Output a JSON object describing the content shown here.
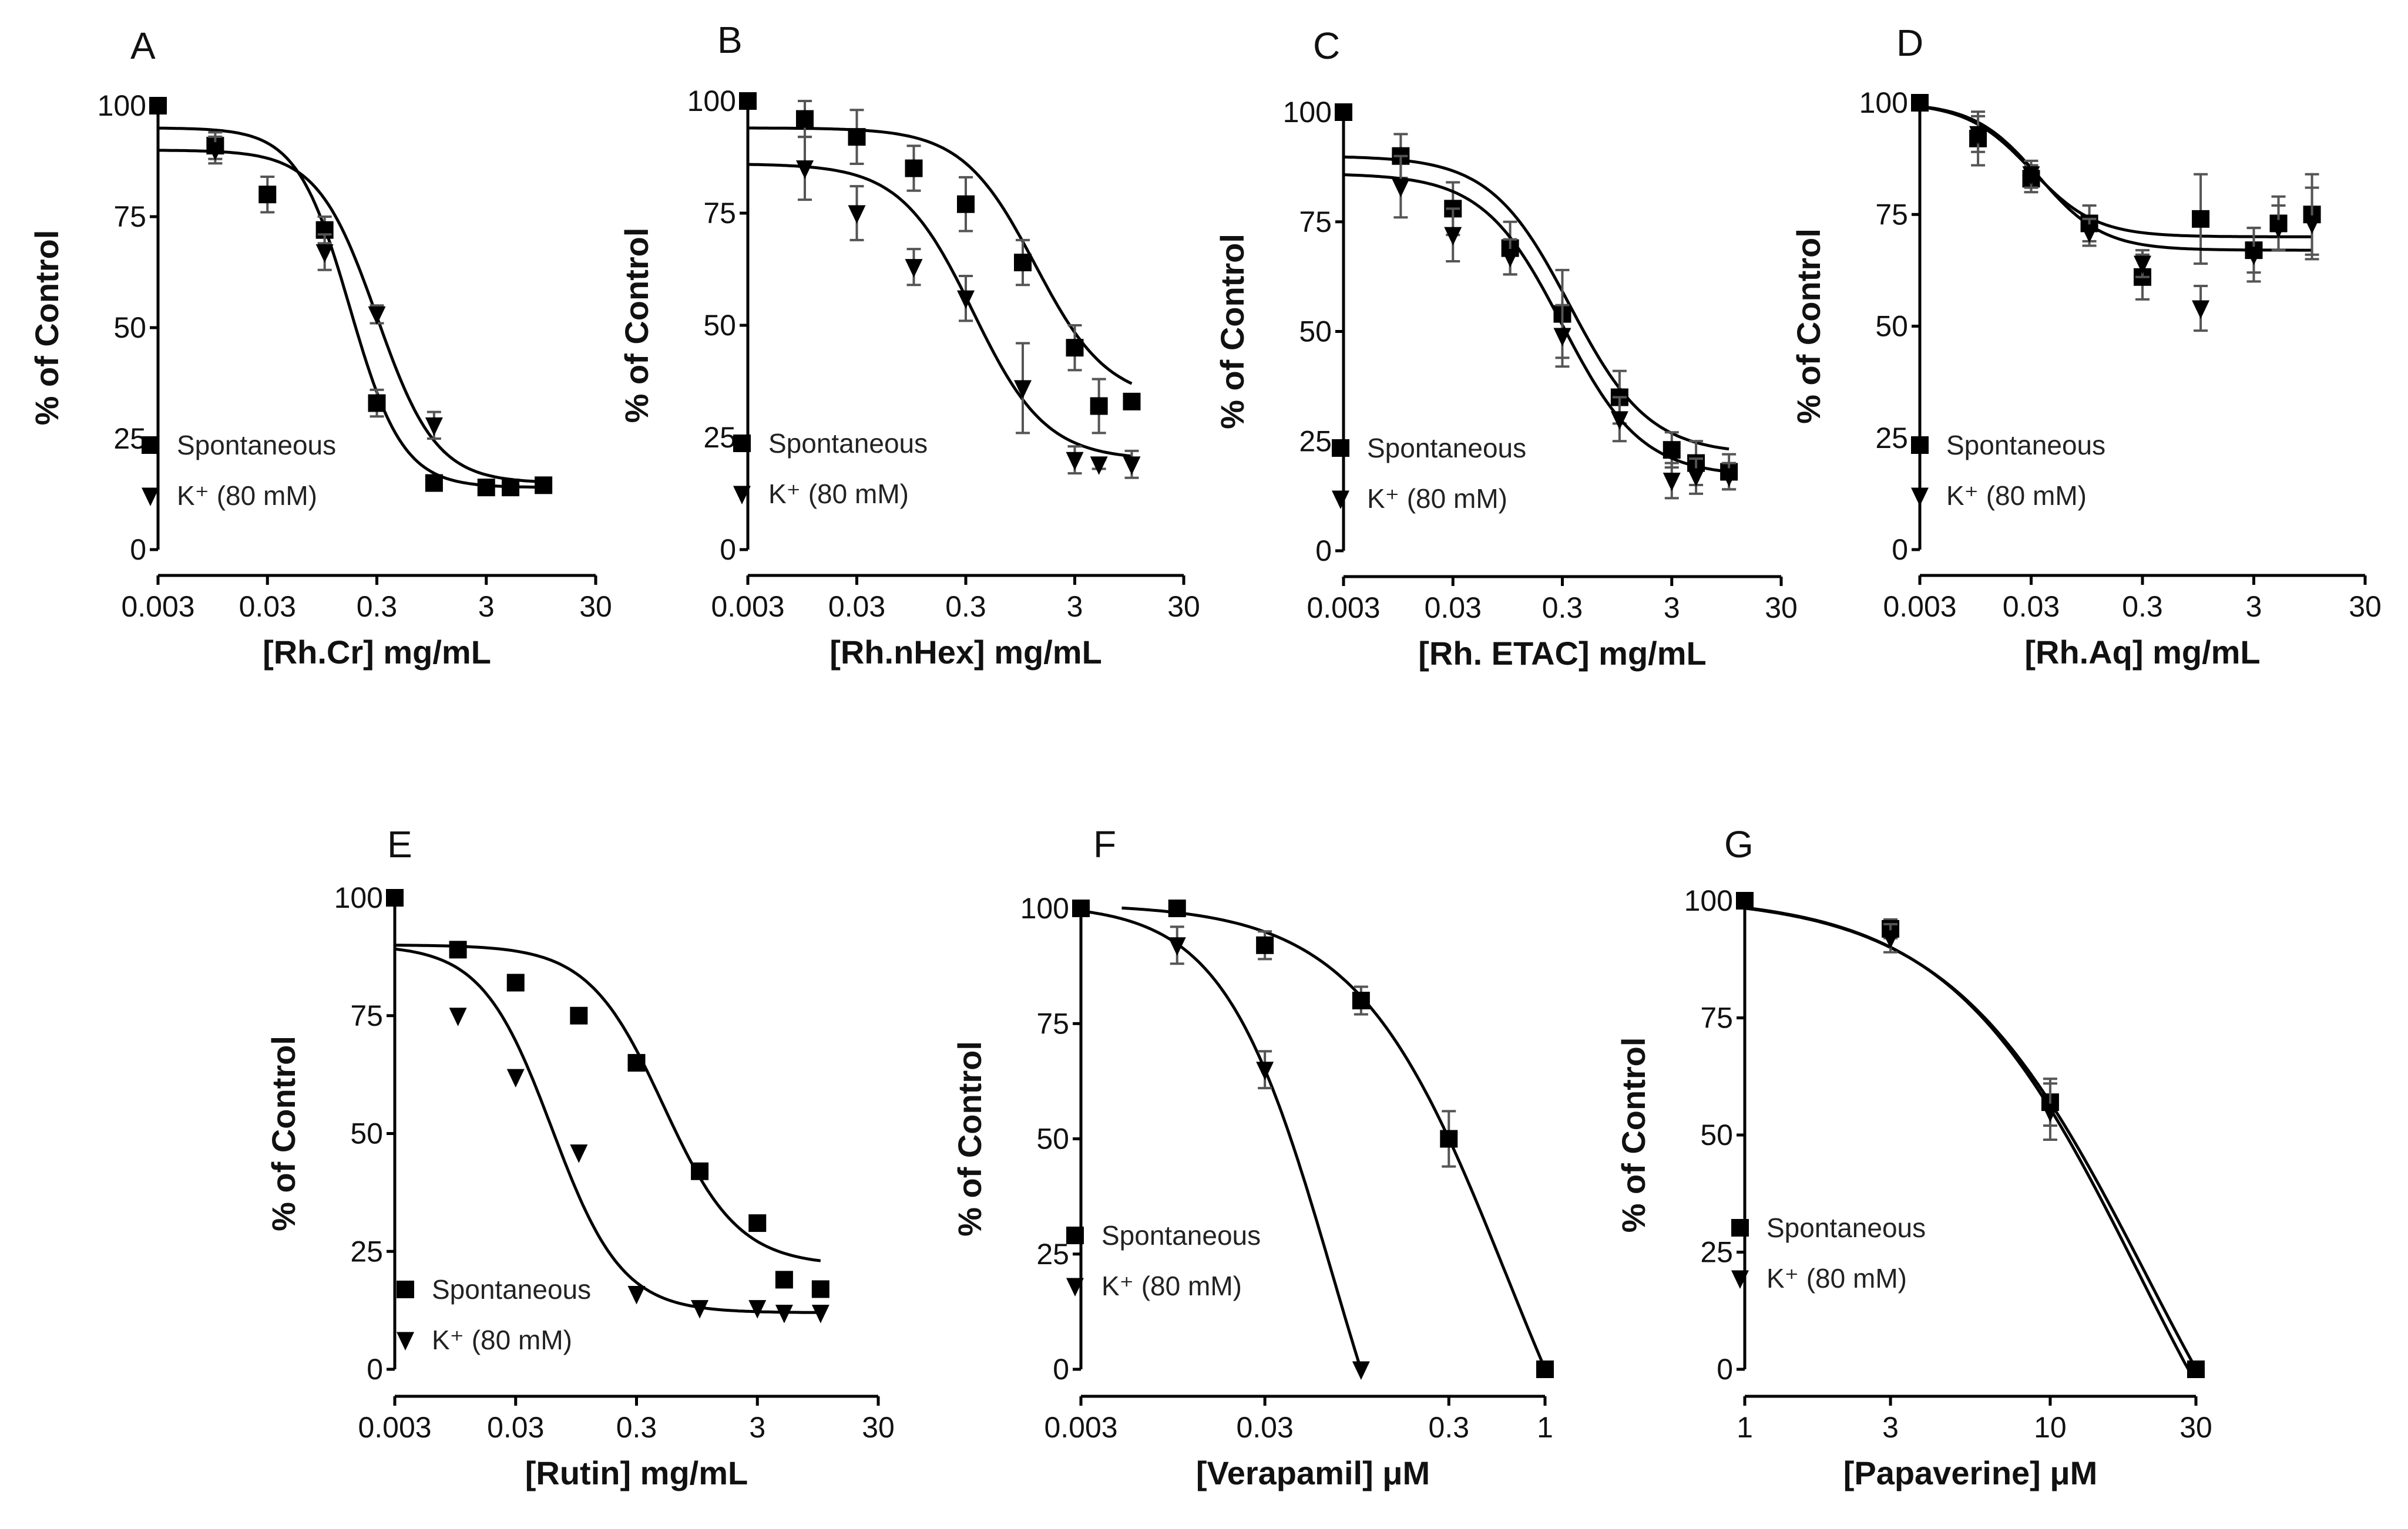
{
  "chart_data": [
    {
      "type": "scatter",
      "panel": "A",
      "xlabel": "[Rh.Cr] mg/mL",
      "ylabel": "% of Control",
      "xscale": "log",
      "xlim": [
        0.003,
        30
      ],
      "ylim": [
        0,
        100
      ],
      "xticks": [
        {
          "v": 0.003,
          "label": "0.003"
        },
        {
          "v": 0.03,
          "label": "0.03"
        },
        {
          "v": 0.3,
          "label": "0.3"
        },
        {
          "v": 3,
          "label": "3"
        },
        {
          "v": 30,
          "label": "30"
        }
      ],
      "yticks": [
        0,
        25,
        50,
        75,
        100
      ],
      "legend_position": "bottom-left",
      "series": [
        {
          "name": "Spontaneous",
          "marker": "square",
          "points": [
            [
              0.003,
              100,
              0
            ],
            [
              0.01,
              91,
              3
            ],
            [
              0.03,
              80,
              4
            ],
            [
              0.1,
              72,
              3
            ],
            [
              0.3,
              33,
              3
            ],
            [
              1,
              15,
              1
            ],
            [
              3,
              14,
              1
            ],
            [
              5,
              14,
              1
            ],
            [
              10,
              14.5,
              1
            ]
          ],
          "fit": {
            "top": 95,
            "bottom": 14,
            "ic50": 0.17,
            "hill": 1.8,
            "xmin": 0.003,
            "xmax": 10
          }
        },
        {
          "name": "K⁺ (80 mM)",
          "marker": "triangle",
          "points": [
            [
              0.01,
              90,
              3
            ],
            [
              0.1,
              67,
              4
            ],
            [
              0.3,
              53,
              2
            ],
            [
              1,
              28,
              3
            ]
          ],
          "fit": {
            "top": 90,
            "bottom": 15,
            "ic50": 0.3,
            "hill": 1.6,
            "xmin": 0.003,
            "xmax": 10
          }
        }
      ]
    },
    {
      "type": "scatter",
      "panel": "B",
      "xlabel": "[Rh.nHex] mg/mL",
      "ylabel": "% of Control",
      "xscale": "log",
      "xlim": [
        0.003,
        30
      ],
      "ylim": [
        0,
        100
      ],
      "xticks": [
        {
          "v": 0.003,
          "label": "0.003"
        },
        {
          "v": 0.03,
          "label": "0.03"
        },
        {
          "v": 0.3,
          "label": "0.3"
        },
        {
          "v": 3,
          "label": "3"
        },
        {
          "v": 30,
          "label": "30"
        }
      ],
      "yticks": [
        0,
        25,
        50,
        75,
        100
      ],
      "legend_position": "bottom-left",
      "series": [
        {
          "name": "Spontaneous",
          "marker": "square",
          "points": [
            [
              0.003,
              100,
              0
            ],
            [
              0.01,
              96,
              4
            ],
            [
              0.03,
              92,
              6
            ],
            [
              0.1,
              85,
              5
            ],
            [
              0.3,
              77,
              6
            ],
            [
              1,
              64,
              5
            ],
            [
              3,
              45,
              5
            ],
            [
              5,
              32,
              6
            ],
            [
              10,
              33,
              1
            ]
          ],
          "fit": {
            "top": 94,
            "bottom": 33,
            "ic50": 1.3,
            "hill": 1.3,
            "xmin": 0.003,
            "xmax": 10
          }
        },
        {
          "name": "K⁺ (80 mM)",
          "marker": "triangle",
          "points": [
            [
              0.01,
              85,
              7
            ],
            [
              0.03,
              75,
              6
            ],
            [
              0.1,
              63,
              4
            ],
            [
              0.3,
              56,
              5
            ],
            [
              1,
              36,
              10
            ],
            [
              3,
              20,
              3
            ],
            [
              5,
              19,
              1
            ],
            [
              10,
              19,
              3
            ]
          ],
          "fit": {
            "top": 86,
            "bottom": 20,
            "ic50": 0.35,
            "hill": 1.3,
            "xmin": 0.003,
            "xmax": 10
          }
        }
      ]
    },
    {
      "type": "scatter",
      "panel": "C",
      "xlabel": "[Rh. ETAC] mg/mL",
      "ylabel": "% of Control",
      "xscale": "log",
      "xlim": [
        0.003,
        30
      ],
      "ylim": [
        0,
        100
      ],
      "xticks": [
        {
          "v": 0.003,
          "label": "0.003"
        },
        {
          "v": 0.03,
          "label": "0.03"
        },
        {
          "v": 0.3,
          "label": "0.3"
        },
        {
          "v": 3,
          "label": "3"
        },
        {
          "v": 30,
          "label": "30"
        }
      ],
      "yticks": [
        0,
        25,
        50,
        75,
        100
      ],
      "legend_position": "bottom-left",
      "series": [
        {
          "name": "Spontaneous",
          "marker": "square",
          "points": [
            [
              0.003,
              100,
              0
            ],
            [
              0.01,
              90,
              5
            ],
            [
              0.03,
              78,
              6
            ],
            [
              0.1,
              69,
              6
            ],
            [
              0.3,
              54,
              10
            ],
            [
              1,
              35,
              6
            ],
            [
              3,
              23,
              4
            ],
            [
              5,
              20,
              5
            ],
            [
              10,
              18,
              4
            ]
          ],
          "fit": {
            "top": 90,
            "bottom": 22,
            "ic50": 0.35,
            "hill": 1.2,
            "xmin": 0.003,
            "xmax": 10
          }
        },
        {
          "name": "K⁺ (80 mM)",
          "marker": "triangle",
          "points": [
            [
              0.01,
              83,
              7
            ],
            [
              0.03,
              72,
              6
            ],
            [
              0.1,
              67,
              4
            ],
            [
              0.3,
              49,
              7
            ],
            [
              1,
              30,
              5
            ],
            [
              3,
              16,
              4
            ],
            [
              5,
              17,
              4
            ],
            [
              10,
              17,
              3
            ]
          ],
          "fit": {
            "top": 86,
            "bottom": 17,
            "ic50": 0.3,
            "hill": 1.2,
            "xmin": 0.003,
            "xmax": 10
          }
        }
      ]
    },
    {
      "type": "scatter",
      "panel": "D",
      "xlabel": "[Rh.Aq] mg/mL",
      "ylabel": "% of Control",
      "xscale": "log",
      "xlim": [
        0.003,
        30
      ],
      "ylim": [
        0,
        100
      ],
      "xticks": [
        {
          "v": 0.003,
          "label": "0.003"
        },
        {
          "v": 0.03,
          "label": "0.03"
        },
        {
          "v": 0.3,
          "label": "0.3"
        },
        {
          "v": 3,
          "label": "3"
        },
        {
          "v": 30,
          "label": "30"
        }
      ],
      "yticks": [
        0,
        25,
        50,
        75,
        100
      ],
      "legend_position": "bottom-left",
      "series": [
        {
          "name": "Spontaneous",
          "marker": "square",
          "points": [
            [
              0.003,
              100,
              0
            ],
            [
              0.01,
              92,
              6
            ],
            [
              0.03,
              83,
              3
            ],
            [
              0.1,
              73,
              4
            ],
            [
              0.3,
              61,
              5
            ],
            [
              1,
              74,
              10
            ],
            [
              3,
              67,
              5
            ],
            [
              5,
              73,
              6
            ],
            [
              10,
              75,
              9
            ]
          ],
          "fit": {
            "top": 100,
            "bottom": 70,
            "ic50": 0.03,
            "hill": 1.5,
            "xmin": 0.003,
            "xmax": 10
          }
        },
        {
          "name": "K⁺ (80 mM)",
          "marker": "triangle",
          "points": [
            [
              0.01,
              93,
              4
            ],
            [
              0.03,
              84,
              3
            ],
            [
              0.1,
              71,
              3
            ],
            [
              0.3,
              64,
              3
            ],
            [
              1,
              54,
              5
            ],
            [
              3,
              66,
              6
            ],
            [
              5,
              72,
              5
            ],
            [
              10,
              73,
              8
            ]
          ],
          "fit": {
            "top": 100,
            "bottom": 67,
            "ic50": 0.035,
            "hill": 1.5,
            "xmin": 0.003,
            "xmax": 10
          }
        }
      ]
    },
    {
      "type": "scatter",
      "panel": "E",
      "xlabel": "[Rutin] mg/mL",
      "ylabel": "% of Control",
      "xscale": "log",
      "xlim": [
        0.003,
        30
      ],
      "ylim": [
        0,
        100
      ],
      "xticks": [
        {
          "v": 0.003,
          "label": "0.003"
        },
        {
          "v": 0.03,
          "label": "0.03"
        },
        {
          "v": 0.3,
          "label": "0.3"
        },
        {
          "v": 3,
          "label": "3"
        },
        {
          "v": 30,
          "label": "30"
        }
      ],
      "yticks": [
        0,
        25,
        50,
        75,
        100
      ],
      "legend_position": "bottom-left",
      "series": [
        {
          "name": "Spontaneous",
          "marker": "square",
          "points": [
            [
              0.003,
              100,
              0
            ],
            [
              0.01,
              89,
              0
            ],
            [
              0.03,
              82,
              0
            ],
            [
              0.1,
              75,
              0
            ],
            [
              0.3,
              65,
              0
            ],
            [
              1,
              42,
              0
            ],
            [
              3,
              31,
              0
            ],
            [
              5,
              19,
              0
            ],
            [
              10,
              17,
              0
            ]
          ],
          "fit": {
            "top": 90,
            "bottom": 22,
            "ic50": 0.5,
            "hill": 1.4,
            "xmin": 0.003,
            "xmax": 10
          }
        },
        {
          "name": "K⁺ (80 mM)",
          "marker": "triangle",
          "points": [
            [
              0.01,
              75,
              0
            ],
            [
              0.03,
              62,
              0
            ],
            [
              0.1,
              46,
              0
            ],
            [
              0.3,
              16,
              0
            ],
            [
              1,
              13,
              0
            ],
            [
              3,
              13,
              0
            ],
            [
              5,
              12,
              0
            ],
            [
              10,
              12,
              0
            ]
          ],
          "fit": {
            "top": 90,
            "bottom": 12,
            "ic50": 0.06,
            "hill": 1.5,
            "xmin": 0.003,
            "xmax": 10
          }
        }
      ]
    },
    {
      "type": "scatter",
      "panel": "F",
      "xlabel": "[Verapamil] μM",
      "ylabel": "% of Control",
      "xscale": "log",
      "xlim": [
        0.003,
        1
      ],
      "ylim": [
        0,
        100
      ],
      "xticks": [
        {
          "v": 0.003,
          "label": "0.003"
        },
        {
          "v": 0.03,
          "label": "0.03"
        },
        {
          "v": 0.3,
          "label": "0.3"
        },
        {
          "v": 1,
          "label": "1"
        }
      ],
      "yticks": [
        0,
        25,
        50,
        75,
        100
      ],
      "legend_position": "bottom-left",
      "series": [
        {
          "name": "Spontaneous",
          "marker": "square",
          "points": [
            [
              0.003,
              100,
              0
            ],
            [
              0.01,
              100,
              1
            ],
            [
              0.03,
              92,
              3
            ],
            [
              0.1,
              80,
              3
            ],
            [
              0.3,
              50,
              6
            ],
            [
              1,
              0,
              0
            ]
          ],
          "fit": {
            "top": 101,
            "bottom": -60,
            "ic50": 0.616,
            "hill": 1.07,
            "xmin": 0.005,
            "xmax": 1
          }
        },
        {
          "name": "K⁺ (80 mM)",
          "marker": "triangle",
          "points": [
            [
              0.01,
              92,
              4
            ],
            [
              0.03,
              65,
              4
            ],
            [
              0.1,
              0,
              0
            ]
          ],
          "fit": {
            "top": 101,
            "bottom": -60,
            "ic50": 0.07,
            "hill": 1.47,
            "xmin": 0.003,
            "xmax": 0.1
          }
        }
      ]
    },
    {
      "type": "scatter",
      "panel": "G",
      "xlabel": "[Papaverine] μM",
      "ylabel": "% of Control",
      "xscale": "log",
      "xlim": [
        1,
        30
      ],
      "ylim": [
        0,
        100
      ],
      "xticks": [
        {
          "v": 1,
          "label": "1"
        },
        {
          "v": 3,
          "label": "3"
        },
        {
          "v": 10,
          "label": "10"
        },
        {
          "v": 30,
          "label": "30"
        }
      ],
      "yticks": [
        0,
        25,
        50,
        75,
        100
      ],
      "legend_position": "bottom-left",
      "series": [
        {
          "name": "Spontaneous",
          "marker": "square",
          "points": [
            [
              1,
              100,
              0
            ],
            [
              3,
              94,
              2
            ],
            [
              10,
              57,
              5
            ],
            [
              30,
              0,
              0
            ]
          ],
          "fit": {
            "top": 101,
            "bottom": -60,
            "ic50": 20.5,
            "hill": 1.36,
            "xmin": 1,
            "xmax": 30
          }
        },
        {
          "name": "K⁺ (80 mM)",
          "marker": "triangle",
          "points": [
            [
              3,
              92,
              3
            ],
            [
              10,
              55,
              6
            ]
          ],
          "fit": {
            "top": 101,
            "bottom": -60,
            "ic50": 19.5,
            "hill": 1.4,
            "xmin": 1,
            "xmax": 30
          }
        }
      ]
    }
  ]
}
